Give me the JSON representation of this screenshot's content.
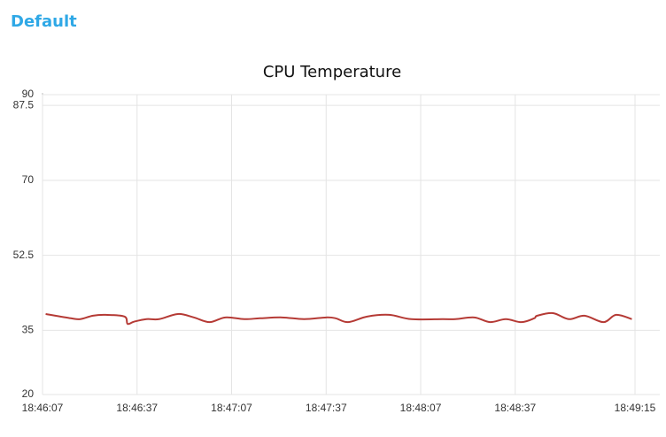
{
  "group_title": "Default",
  "chart_data": {
    "type": "line",
    "title": "CPU Temperature",
    "x": [
      "18:46:08",
      "18:46:16",
      "18:46:19",
      "18:46:23",
      "18:46:27",
      "18:46:33",
      "18:46:34",
      "18:46:36",
      "18:46:40",
      "18:46:44",
      "18:46:50",
      "18:46:55",
      "18:47:00",
      "18:47:05",
      "18:47:11",
      "18:47:16",
      "18:47:23",
      "18:47:30",
      "18:47:37",
      "18:47:40",
      "18:47:44",
      "18:47:50",
      "18:47:57",
      "18:48:04",
      "18:48:14",
      "18:48:18",
      "18:48:24",
      "18:48:29",
      "18:48:34",
      "18:48:39",
      "18:48:43",
      "18:48:44",
      "18:48:49",
      "18:48:54",
      "18:48:59",
      "18:49:05",
      "18:49:09",
      "18:49:14"
    ],
    "series": [
      {
        "name": "CPU Temperature",
        "color": "#b53a35",
        "values": [
          38.8,
          37.8,
          37.6,
          38.4,
          38.6,
          38.2,
          36.5,
          37,
          37.6,
          37.6,
          38.8,
          38,
          36.9,
          38,
          37.6,
          37.8,
          38,
          37.6,
          38,
          37.8,
          36.9,
          38.2,
          38.6,
          37.6,
          37.6,
          37.6,
          38,
          36.9,
          37.6,
          36.9,
          37.8,
          38.4,
          39,
          37.6,
          38.4,
          36.9,
          38.6,
          37.6
        ]
      }
    ],
    "xlim": [
      "18:46:07",
      "18:49:15"
    ],
    "xticks": [
      "18:46:07",
      "18:46:37",
      "18:47:07",
      "18:47:37",
      "18:48:07",
      "18:48:37",
      "18:49:15"
    ],
    "ylim": [
      20,
      90
    ],
    "yticks": [
      20,
      35,
      52.5,
      70,
      87.5,
      90
    ],
    "grid": true
  }
}
